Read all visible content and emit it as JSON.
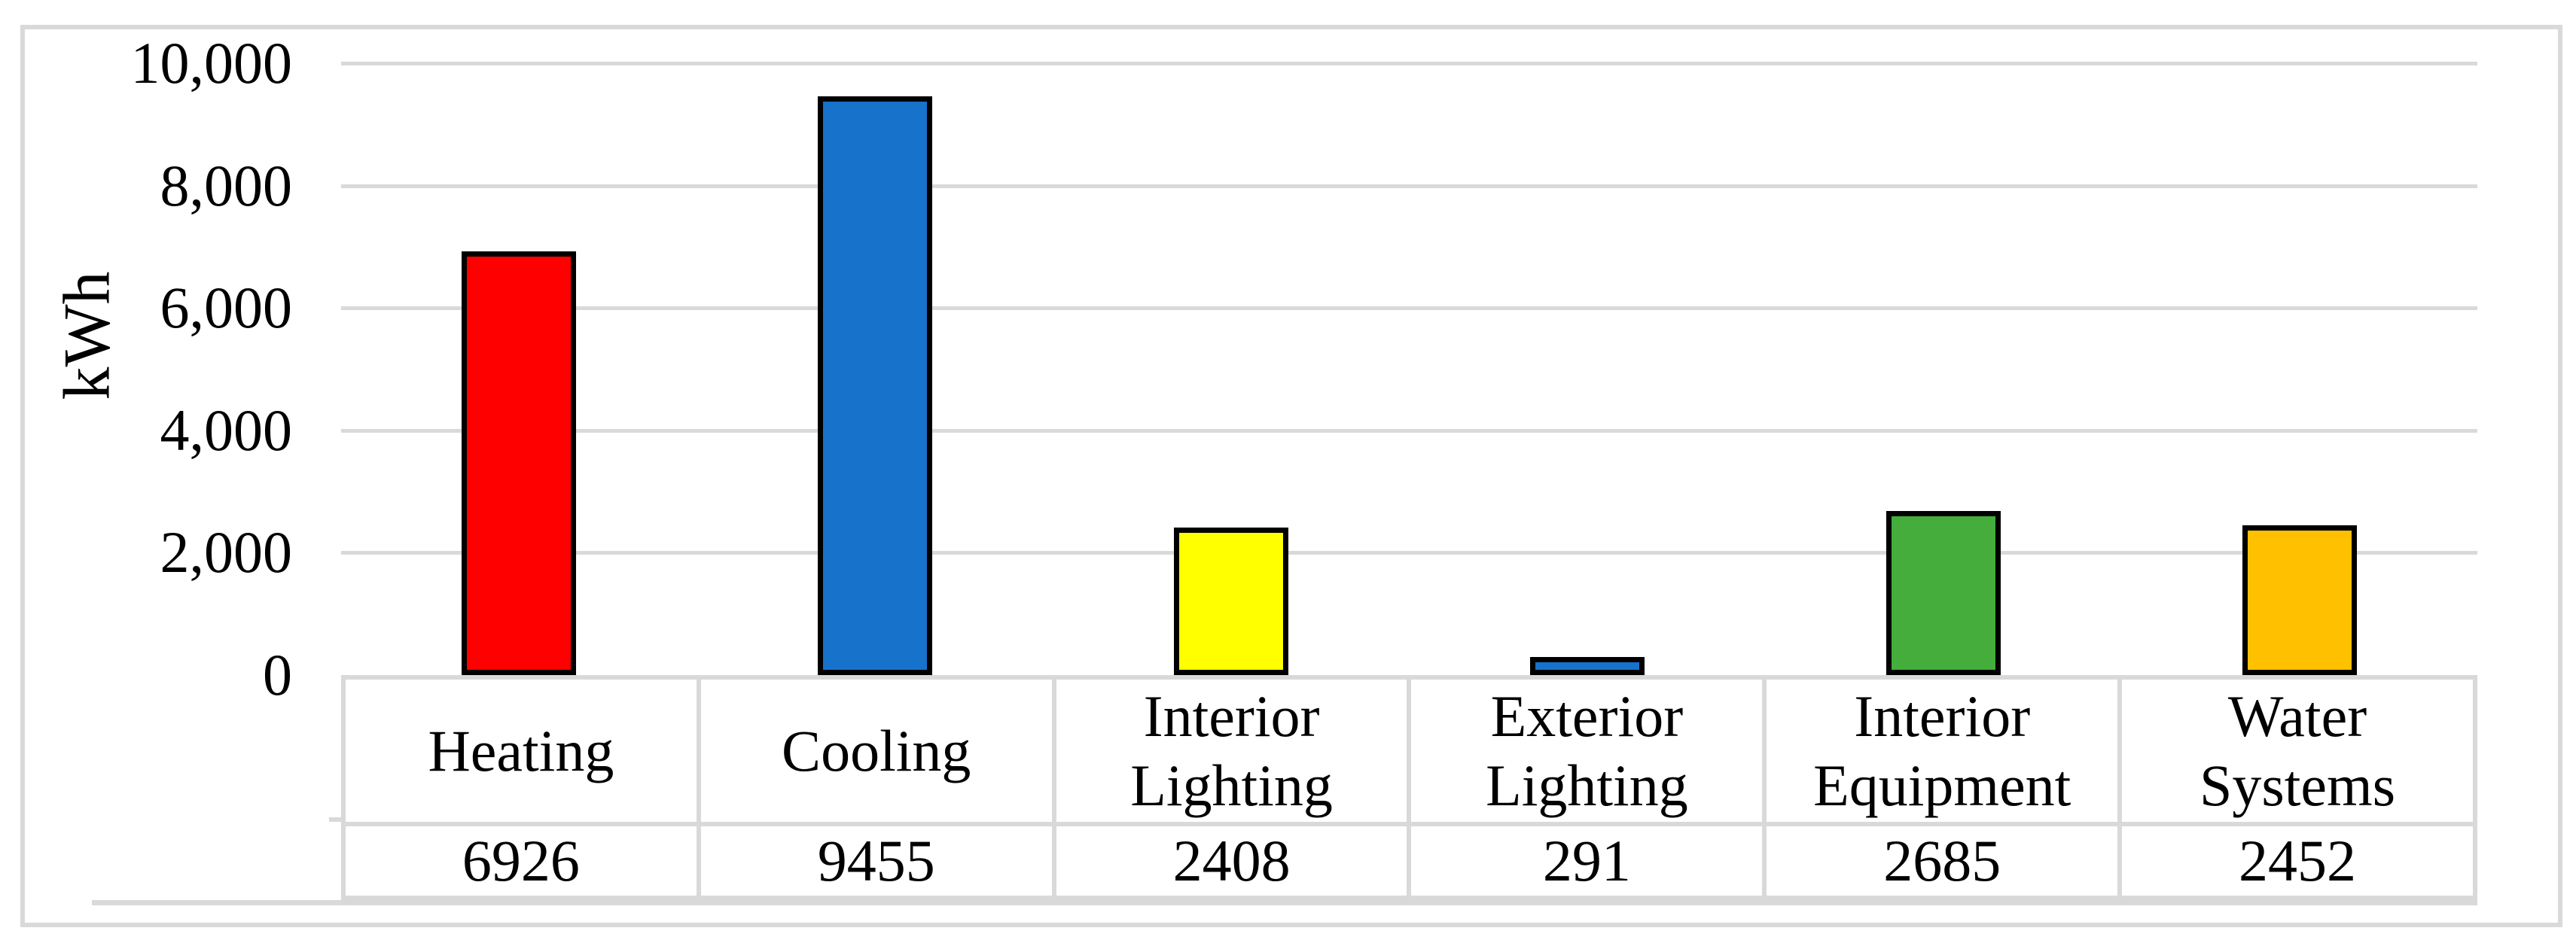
{
  "chart_data": {
    "type": "bar",
    "categories": [
      "Heating",
      "Cooling",
      "Interior Lighting",
      "Exterior Lighting",
      "Interior Equipment",
      "Water Systems"
    ],
    "values": [
      6926,
      9455,
      2408,
      291,
      2685,
      2452
    ],
    "bar_colors": [
      "#FF0000",
      "#1772CB",
      "#FFFF00",
      "#1772CB",
      "#44AD3B",
      "#FFC000"
    ],
    "title": "",
    "xlabel": "",
    "ylabel": "kWh",
    "ylim": [
      0,
      10000
    ],
    "ytick_interval": 2000,
    "yticks": [
      {
        "label": "10,000",
        "value": 10000
      },
      {
        "label": "8,000",
        "value": 8000
      },
      {
        "label": "6,000",
        "value": 6000
      },
      {
        "label": "4,000",
        "value": 4000
      },
      {
        "label": "2,000",
        "value": 2000
      },
      {
        "label": "0",
        "value": 0
      }
    ],
    "grid": true,
    "legend_position": "none",
    "data_table_shown": true,
    "table": {
      "header_row": [
        "Heating",
        "Cooling",
        "Interior Lighting",
        "Exterior Lighting",
        "Interior Equipment",
        "Water Systems"
      ],
      "value_row": [
        "6926",
        "9455",
        "2408",
        "291",
        "2685",
        "2452"
      ]
    }
  },
  "colors": {
    "background": "#FFFFFF",
    "gridline": "#D9D9D9",
    "frame_border": "#D9D9D9",
    "table_border": "#D9D9D9",
    "bar_outline": "#000000",
    "text": "#000000"
  }
}
